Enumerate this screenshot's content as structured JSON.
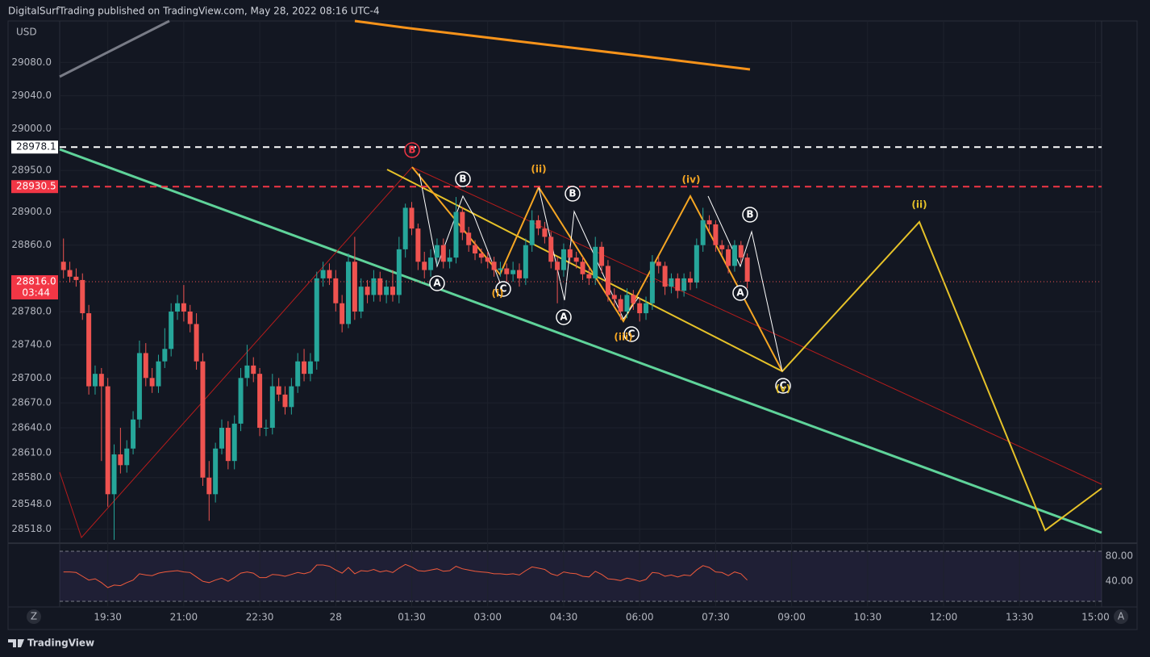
{
  "header": {
    "text": "DigitalSurfTrading published on TradingView.com, May 28, 2022 08:16 UTC-4",
    "currency": "USD"
  },
  "chart_data": [
    {
      "type": "candlestick",
      "up_color": "#26a69a",
      "down_color": "#ef5350",
      "x": [
        18.625,
        18.75,
        18.875,
        19,
        19.125,
        19.25,
        19.375,
        19.5,
        19.625,
        19.75,
        19.875,
        20,
        20.125,
        20.25,
        20.375,
        20.5,
        20.625,
        20.75,
        20.875,
        21,
        21.125,
        21.25,
        21.375,
        21.5,
        21.625,
        21.75,
        21.875,
        22,
        22.125,
        22.25,
        22.375,
        22.5,
        22.625,
        22.75,
        22.875,
        23,
        23.125,
        23.25,
        23.375,
        23.5,
        23.625,
        23.75,
        23.875,
        24,
        24.125,
        24.25,
        24.375,
        24.5,
        24.625,
        24.75,
        24.875,
        25,
        25.125,
        25.25,
        25.375,
        25.5,
        25.625,
        25.75,
        25.875,
        26,
        26.125,
        26.25,
        26.375,
        26.5,
        26.625,
        26.75,
        26.875,
        27,
        27.125,
        27.25,
        27.375,
        27.5,
        27.625,
        27.75,
        27.875,
        28,
        28.125,
        28.25,
        28.375,
        28.5,
        28.625,
        28.75,
        28.875,
        29,
        29.125,
        29.25,
        29.375,
        29.5,
        29.625,
        29.75,
        29.875,
        30,
        30.125,
        30.25,
        30.375,
        30.5,
        30.625,
        30.75,
        30.875,
        31,
        31.125,
        31.25,
        31.375,
        31.5,
        31.625,
        31.75,
        31.875,
        32,
        32.125
      ],
      "open": [
        28840,
        28830,
        28822,
        28818,
        28778,
        28690,
        28705,
        28690,
        28560,
        28608,
        28595,
        28615,
        28650,
        28730,
        28700,
        28690,
        28720,
        28735,
        28780,
        28790,
        28780,
        28765,
        28720,
        28580,
        28560,
        28615,
        28640,
        28600,
        28645,
        28700,
        28715,
        28705,
        28640,
        28640,
        28690,
        28680,
        28665,
        28690,
        28720,
        28705,
        28720,
        28820,
        28830,
        28820,
        28790,
        28765,
        28840,
        28780,
        28810,
        28800,
        28820,
        28800,
        28810,
        28800,
        28855,
        28905,
        28880,
        28840,
        28830,
        28845,
        28860,
        28840,
        28845,
        28900,
        28875,
        28860,
        28850,
        28845,
        28840,
        28830,
        28832,
        28825,
        28830,
        28820,
        28860,
        28890,
        28880,
        28870,
        28840,
        28830,
        28855,
        28845,
        28840,
        28825,
        28820,
        28858,
        28835,
        28800,
        28795,
        28780,
        28800,
        28790,
        28778,
        28790,
        28840,
        28835,
        28810,
        28820,
        28805,
        28820,
        28815,
        28860,
        28890,
        28885,
        28860,
        28855,
        28835,
        28860,
        28845
      ],
      "high": [
        28868,
        28840,
        28832,
        28826,
        28788,
        28715,
        28712,
        28700,
        28620,
        28640,
        28625,
        28660,
        28745,
        28742,
        28712,
        28728,
        28760,
        28790,
        28800,
        28812,
        28788,
        28778,
        28730,
        28600,
        28622,
        28650,
        28648,
        28655,
        28712,
        28740,
        28725,
        28712,
        28650,
        28705,
        28700,
        28690,
        28700,
        28730,
        28735,
        28730,
        28828,
        28840,
        28838,
        28830,
        28800,
        28850,
        28870,
        28820,
        28818,
        28830,
        28828,
        28818,
        28830,
        28870,
        28910,
        28912,
        28886,
        28852,
        28855,
        28868,
        28868,
        28855,
        28918,
        28906,
        28882,
        28866,
        28856,
        28852,
        28846,
        28840,
        28838,
        28840,
        28838,
        28868,
        28902,
        28896,
        28888,
        28876,
        28846,
        28862,
        28860,
        28852,
        28846,
        28832,
        28870,
        28864,
        28842,
        28808,
        28800,
        28808,
        28806,
        28796,
        28798,
        28848,
        28846,
        28840,
        28826,
        28826,
        28826,
        28828,
        28868,
        28905,
        28896,
        28890,
        28866,
        28860,
        28866,
        28865,
        28850
      ],
      "low": [
        28820,
        28815,
        28810,
        28770,
        28680,
        28680,
        28600,
        28545,
        28505,
        28585,
        28586,
        28608,
        28640,
        28690,
        28682,
        28682,
        28712,
        28726,
        28770,
        28768,
        28755,
        28710,
        28570,
        28528,
        28550,
        28608,
        28590,
        28590,
        28636,
        28690,
        28695,
        28630,
        28630,
        28632,
        28672,
        28656,
        28656,
        28682,
        28696,
        28696,
        28710,
        28810,
        28812,
        28780,
        28755,
        28760,
        28770,
        28772,
        28790,
        28792,
        28792,
        28790,
        28792,
        28790,
        28845,
        28872,
        28830,
        28820,
        28822,
        28836,
        28832,
        28832,
        28838,
        28866,
        28852,
        28842,
        28838,
        28832,
        28822,
        28822,
        28816,
        28816,
        28810,
        28812,
        28852,
        28872,
        28862,
        28832,
        28790,
        28822,
        28838,
        28832,
        28818,
        28812,
        28812,
        28826,
        28792,
        28786,
        28770,
        28772,
        28782,
        28768,
        28770,
        28782,
        28826,
        28800,
        28802,
        28796,
        28798,
        28806,
        28808,
        28852,
        28876,
        28852,
        28848,
        28826,
        28828,
        28838,
        28808
      ],
      "close": [
        28830,
        28822,
        28818,
        28778,
        28690,
        28705,
        28690,
        28560,
        28608,
        28595,
        28615,
        28650,
        28730,
        28700,
        28690,
        28720,
        28735,
        28780,
        28790,
        28780,
        28765,
        28720,
        28580,
        28560,
        28615,
        28640,
        28600,
        28645,
        28700,
        28715,
        28705,
        28640,
        28640,
        28690,
        28680,
        28665,
        28690,
        28720,
        28705,
        28720,
        28820,
        28830,
        28820,
        28790,
        28765,
        28840,
        28780,
        28810,
        28800,
        28820,
        28800,
        28810,
        28800,
        28855,
        28905,
        28880,
        28840,
        28830,
        28845,
        28860,
        28840,
        28845,
        28900,
        28875,
        28860,
        28850,
        28845,
        28840,
        28830,
        28832,
        28825,
        28830,
        28820,
        28860,
        28890,
        28880,
        28870,
        28840,
        28830,
        28855,
        28845,
        28840,
        28825,
        28820,
        28858,
        28835,
        28800,
        28795,
        28780,
        28800,
        28790,
        28778,
        28790,
        28840,
        28835,
        28810,
        28820,
        28805,
        28820,
        28815,
        28860,
        28890,
        28885,
        28860,
        28855,
        28835,
        28860,
        28845,
        28816
      ],
      "xlim": [
        18.55,
        39.12
      ],
      "xticks": [
        {
          "value": 19.5,
          "label": "19:30"
        },
        {
          "value": 21,
          "label": "21:00"
        },
        {
          "value": 22.5,
          "label": "22:30"
        },
        {
          "value": 24,
          "label": "28"
        },
        {
          "value": 25.5,
          "label": "01:30"
        },
        {
          "value": 27,
          "label": "03:00"
        },
        {
          "value": 28.5,
          "label": "04:30"
        },
        {
          "value": 30,
          "label": "06:00"
        },
        {
          "value": 31.5,
          "label": "07:30"
        },
        {
          "value": 33,
          "label": "09:00"
        },
        {
          "value": 34.5,
          "label": "10:30"
        },
        {
          "value": 36,
          "label": "12:00"
        },
        {
          "value": 37.5,
          "label": "13:30"
        },
        {
          "value": 39,
          "label": "15:00"
        }
      ],
      "ylim": [
        28501,
        29130
      ],
      "yticks": [
        {
          "value": 29080,
          "label": "29080.0"
        },
        {
          "value": 29040,
          "label": "29040.0"
        },
        {
          "value": 29000,
          "label": "29000.0"
        },
        {
          "value": 28950,
          "label": "28950.0"
        },
        {
          "value": 28900,
          "label": "28900.0"
        },
        {
          "value": 28860,
          "label": "28860.0"
        },
        {
          "value": 28780,
          "label": "28780.0"
        },
        {
          "value": 28740,
          "label": "28740.0"
        },
        {
          "value": 28700,
          "label": "28700.0"
        },
        {
          "value": 28670,
          "label": "28670.0"
        },
        {
          "value": 28640,
          "label": "28640.0"
        },
        {
          "value": 28610,
          "label": "28610.0"
        },
        {
          "value": 28580,
          "label": "28580.0"
        },
        {
          "value": 28548,
          "label": "28548.0"
        },
        {
          "value": 28518,
          "label": "28518.0"
        }
      ],
      "grid": true,
      "price_lines": [
        {
          "value": 28978.1,
          "color": "#ffffff"
        },
        {
          "value": 28930.5,
          "color": "#f23645"
        }
      ],
      "last_price": {
        "value": 28816,
        "label": "28816.0"
      },
      "countdown": "03:44",
      "annotations": [
        "B",
        "A",
        "B",
        "C",
        "B",
        "A",
        "C",
        "B",
        "A",
        "C",
        "(ii)",
        "(iv)",
        "(i)",
        "(iii)",
        "(ii)",
        "(v)"
      ]
    },
    {
      "type": "line",
      "color": "#f05a3c",
      "values": [
        55,
        55,
        54,
        48,
        42,
        44,
        38,
        30,
        34,
        33,
        38,
        42,
        52,
        50,
        49,
        53,
        55,
        56,
        57,
        55,
        54,
        47,
        40,
        38,
        42,
        45,
        40,
        46,
        53,
        55,
        53,
        46,
        46,
        51,
        50,
        48,
        51,
        54,
        52,
        55,
        66,
        66,
        64,
        58,
        53,
        62,
        52,
        57,
        56,
        59,
        55,
        57,
        54,
        61,
        67,
        63,
        57,
        56,
        58,
        60,
        56,
        57,
        64,
        60,
        58,
        56,
        55,
        54,
        52,
        52,
        51,
        52,
        50,
        57,
        63,
        61,
        59,
        52,
        49,
        55,
        53,
        52,
        48,
        47,
        56,
        51,
        44,
        43,
        41,
        45,
        43,
        40,
        43,
        54,
        53,
        48,
        50,
        47,
        50,
        49,
        58,
        65,
        62,
        55,
        54,
        49,
        55,
        52,
        42
      ],
      "ylim": [
        -1,
        97
      ],
      "yticks": [
        {
          "value": 80,
          "label": "80.00"
        },
        {
          "value": 40,
          "label": "40.00"
        }
      ]
    }
  ],
  "footer": {
    "brand": "TradingView",
    "left_button": "Z",
    "right_button": "A"
  }
}
